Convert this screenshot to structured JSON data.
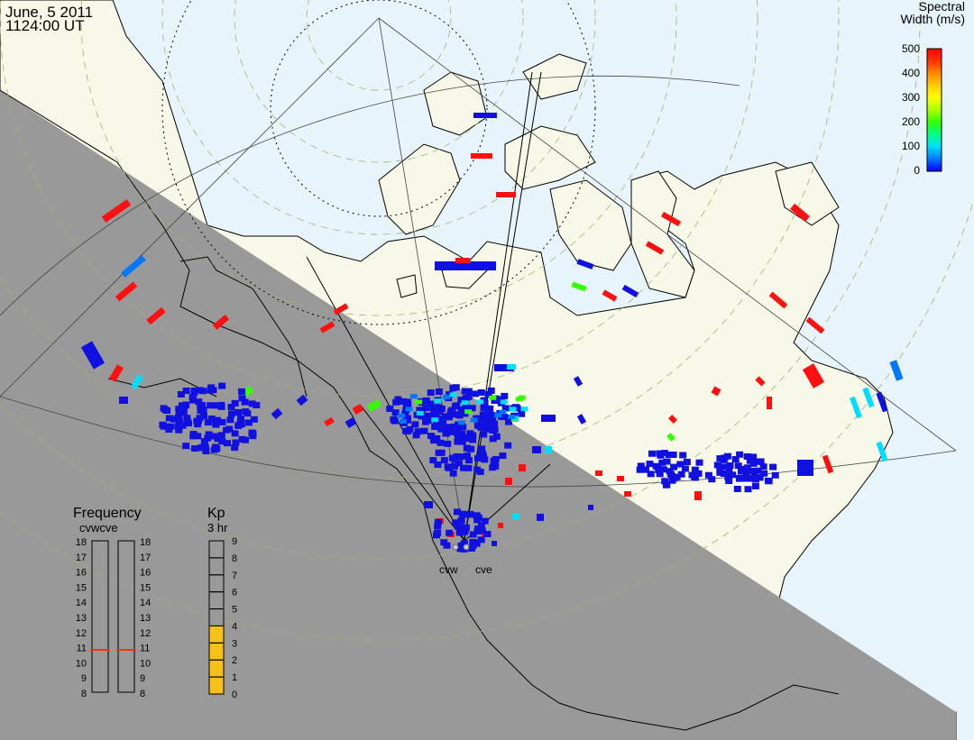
{
  "header": {
    "date": "June, 5 2011",
    "time": "1124:00 UT"
  },
  "colorbar": {
    "title_line1": "Spectral",
    "title_line2": "Width (m/s)",
    "ticks": [
      "500",
      "400",
      "300",
      "200",
      "100",
      "0"
    ],
    "stops": [
      "#0000ff",
      "#0077ff",
      "#00ddff",
      "#00ff88",
      "#33ff00",
      "#aaff00",
      "#ffff00",
      "#ffcc00",
      "#ff8800",
      "#ff3300",
      "#ff0000"
    ]
  },
  "frequency": {
    "title": "Frequency",
    "radars": "cvwcve",
    "ticks": [
      "18",
      "17",
      "16",
      "15",
      "14",
      "13",
      "12",
      "11",
      "10",
      "9",
      "8"
    ],
    "cvw_mhz": 10.8,
    "cve_mhz": 10.8,
    "marker_color": "#ff3300"
  },
  "kp": {
    "title": "Kp",
    "subtitle": "3 hr",
    "ticks": [
      "9",
      "8",
      "7",
      "6",
      "5",
      "4",
      "3",
      "2",
      "1",
      "0"
    ],
    "value": 4,
    "fill_color": "#f5c018"
  },
  "sites": {
    "cvw": "cvw",
    "cve": "cve"
  },
  "colors": {
    "ocean_day": "#e8f4fc",
    "land_day": "#f8f8e8",
    "night": "#999999",
    "low_width": "#1010e0",
    "high_width": "#ff1010"
  }
}
